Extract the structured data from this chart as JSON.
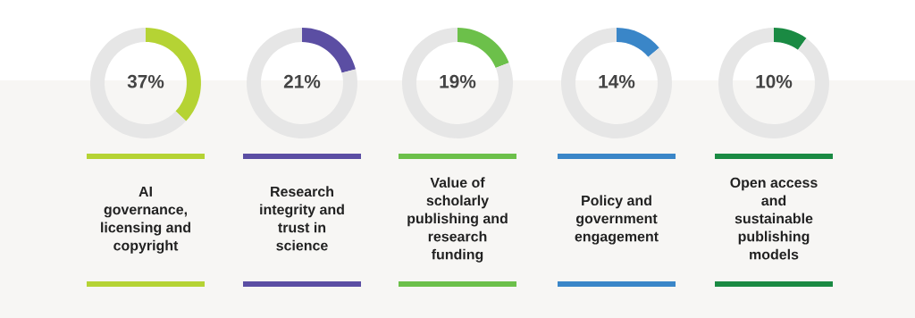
{
  "chart_data": [
    {
      "type": "donut",
      "title": "AI\ngovernance,\nlicensing and\ncopyright",
      "categories": [
        null,
        null
      ],
      "values": [
        37,
        63
      ],
      "colors": [
        "#b5d334",
        "#e6e6e6"
      ],
      "value_labels": [
        "37%",
        null
      ]
    },
    {
      "type": "donut",
      "title": "Research\nintegrity and\ntrust in\nscience",
      "categories": [
        null,
        null
      ],
      "values": [
        21,
        79
      ],
      "colors": [
        "#5b4ea3",
        "#e6e6e6"
      ],
      "value_labels": [
        "21%",
        null
      ]
    },
    {
      "type": "donut",
      "title": "Value of\nscholarly\npublishing and\nresearch\nfunding",
      "categories": [
        null,
        null
      ],
      "values": [
        19,
        81
      ],
      "colors": [
        "#6cc04a",
        "#e6e6e6"
      ],
      "value_labels": [
        "19%",
        null
      ]
    },
    {
      "type": "donut",
      "title": "Policy and\ngovernment\nengagement",
      "categories": [
        null,
        null
      ],
      "values": [
        14,
        86
      ],
      "colors": [
        "#3a86c8",
        "#e6e6e6"
      ],
      "value_labels": [
        "14%",
        null
      ]
    },
    {
      "type": "donut",
      "title": "Open access\nand\nsustainable\npublishing\nmodels",
      "categories": [
        null,
        null
      ],
      "values": [
        10,
        90
      ],
      "colors": [
        "#1a8a43",
        "#e6e6e6"
      ],
      "value_labels": [
        "10%",
        null
      ]
    }
  ]
}
